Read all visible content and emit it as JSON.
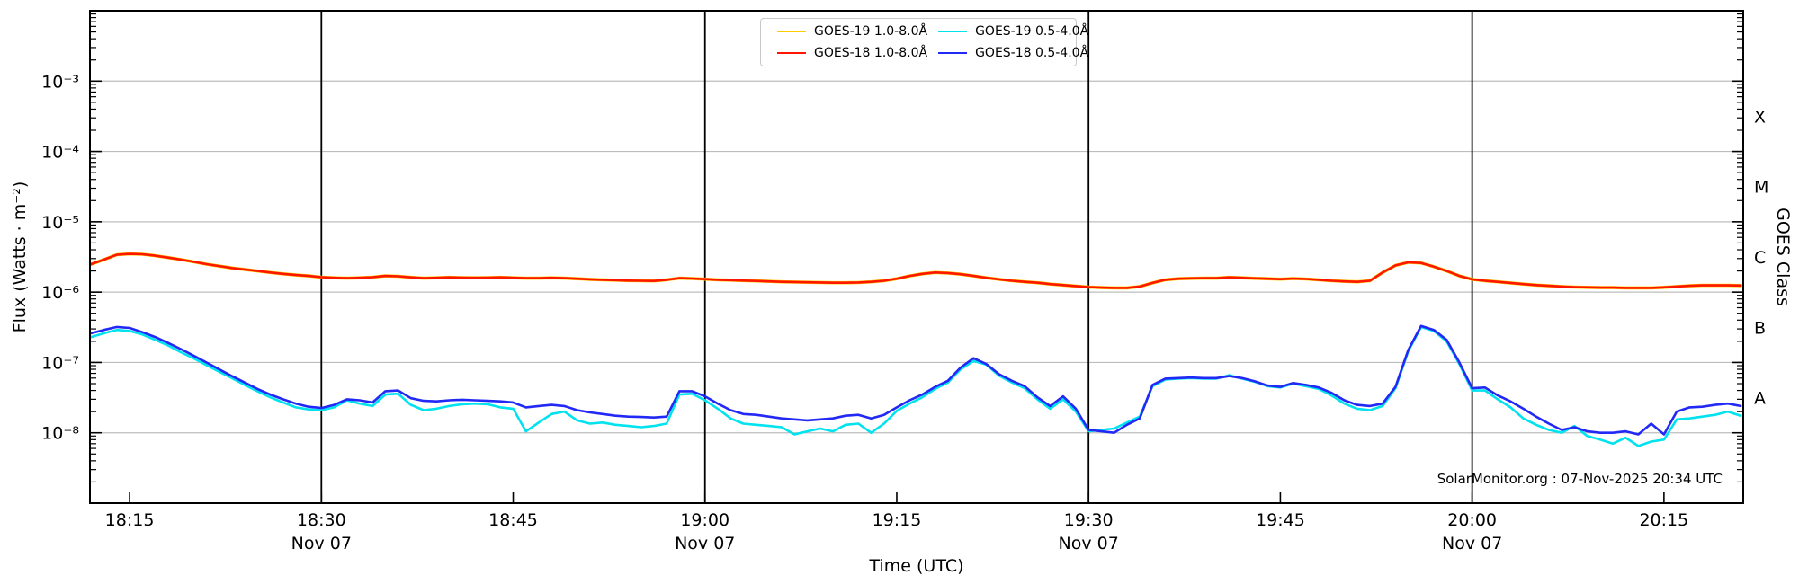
{
  "chart_data": {
    "type": "line",
    "title": "",
    "xlabel": "Time (UTC)",
    "ylabel": "Flux (Watts · m⁻²)",
    "y2label": "GOES Class",
    "attribution": "SolarMonitor.org : 07-Nov-2025 20:34 UTC",
    "x_axis_note": "minutes after 18:00 UTC on 07-Nov-2025",
    "x_domain": [
      11.9,
      141.2
    ],
    "ylim": [
      1e-09,
      0.01
    ],
    "grid": "horizontal decade gridlines",
    "grid_color": "#bdbdbd",
    "frame_color": "#000000",
    "legend_position": "top-center",
    "x_ticks": [
      {
        "t": 15,
        "label": "18:15"
      },
      {
        "t": 30,
        "label": "18:30",
        "date": "Nov 07"
      },
      {
        "t": 45,
        "label": "18:45"
      },
      {
        "t": 60,
        "label": "19:00",
        "date": "Nov 07"
      },
      {
        "t": 75,
        "label": "19:15"
      },
      {
        "t": 90,
        "label": "19:30",
        "date": "Nov 07"
      },
      {
        "t": 105,
        "label": "19:45"
      },
      {
        "t": 120,
        "label": "20:00",
        "date": "Nov 07"
      },
      {
        "t": 135,
        "label": "20:15"
      }
    ],
    "date_lines": [
      30,
      60,
      90,
      120
    ],
    "y_ticks": [
      {
        "v": 0.001,
        "label": "10⁻³"
      },
      {
        "v": 0.0001,
        "label": "10⁻⁴"
      },
      {
        "v": 1e-05,
        "label": "10⁻⁵"
      },
      {
        "v": 1e-06,
        "label": "10⁻⁶"
      },
      {
        "v": 1e-07,
        "label": "10⁻⁷"
      },
      {
        "v": 1e-08,
        "label": "10⁻⁸"
      }
    ],
    "class_labels": [
      {
        "v": 0.000316,
        "label": "X"
      },
      {
        "v": 3.16e-05,
        "label": "M"
      },
      {
        "v": 3.16e-06,
        "label": "C"
      },
      {
        "v": 3.16e-07,
        "label": "B"
      },
      {
        "v": 3.16e-08,
        "label": "A"
      }
    ],
    "t_minutes": {
      "start": 12,
      "step": 1,
      "count": 130
    },
    "series": [
      {
        "name": "GOES-19 1.0-8.0Å",
        "color": "#ffcc00",
        "width": 3.6,
        "values": [
          2.5e-06,
          2.9e-06,
          3.4e-06,
          3.5e-06,
          3.45e-06,
          3.3e-06,
          3.1e-06,
          2.9e-06,
          2.7e-06,
          2.5e-06,
          2.35e-06,
          2.2e-06,
          2.1e-06,
          2e-06,
          1.9e-06,
          1.82e-06,
          1.75e-06,
          1.7e-06,
          1.63e-06,
          1.6e-06,
          1.58e-06,
          1.6e-06,
          1.63e-06,
          1.7e-06,
          1.68e-06,
          1.62e-06,
          1.58e-06,
          1.6e-06,
          1.62e-06,
          1.61e-06,
          1.6e-06,
          1.61e-06,
          1.62e-06,
          1.6e-06,
          1.58e-06,
          1.58e-06,
          1.6e-06,
          1.58e-06,
          1.55e-06,
          1.52e-06,
          1.5e-06,
          1.48e-06,
          1.46e-06,
          1.45e-06,
          1.44e-06,
          1.5e-06,
          1.58e-06,
          1.56e-06,
          1.53e-06,
          1.5e-06,
          1.48e-06,
          1.46e-06,
          1.44e-06,
          1.42e-06,
          1.4e-06,
          1.39e-06,
          1.38e-06,
          1.37e-06,
          1.36e-06,
          1.36e-06,
          1.37e-06,
          1.4e-06,
          1.45e-06,
          1.55e-06,
          1.7e-06,
          1.82e-06,
          1.9e-06,
          1.87e-06,
          1.8e-06,
          1.7e-06,
          1.6e-06,
          1.52e-06,
          1.45e-06,
          1.4e-06,
          1.36e-06,
          1.3e-06,
          1.26e-06,
          1.22e-06,
          1.18e-06,
          1.16e-06,
          1.15e-06,
          1.15e-06,
          1.2e-06,
          1.35e-06,
          1.5e-06,
          1.55e-06,
          1.57e-06,
          1.58e-06,
          1.58e-06,
          1.62e-06,
          1.6e-06,
          1.57e-06,
          1.55e-06,
          1.53e-06,
          1.56e-06,
          1.54e-06,
          1.5e-06,
          1.45e-06,
          1.42e-06,
          1.4e-06,
          1.45e-06,
          1.9e-06,
          2.4e-06,
          2.65e-06,
          2.6e-06,
          2.3e-06,
          2e-06,
          1.7e-06,
          1.52e-06,
          1.45e-06,
          1.4e-06,
          1.35e-06,
          1.3e-06,
          1.26e-06,
          1.23e-06,
          1.2e-06,
          1.18e-06,
          1.17e-06,
          1.16e-06,
          1.16e-06,
          1.15e-06,
          1.15e-06,
          1.15e-06,
          1.17e-06,
          1.2e-06,
          1.23e-06,
          1.25e-06,
          1.25e-06,
          1.25e-06,
          1.24e-06
        ]
      },
      {
        "name": "GOES-18 1.0-8.0Å",
        "color": "#ff1600",
        "width": 2.6,
        "values": [
          2.5e-06,
          2.9e-06,
          3.4e-06,
          3.5e-06,
          3.45e-06,
          3.3e-06,
          3.1e-06,
          2.9e-06,
          2.7e-06,
          2.5e-06,
          2.35e-06,
          2.2e-06,
          2.1e-06,
          2e-06,
          1.9e-06,
          1.82e-06,
          1.75e-06,
          1.7e-06,
          1.63e-06,
          1.6e-06,
          1.58e-06,
          1.6e-06,
          1.63e-06,
          1.7e-06,
          1.68e-06,
          1.62e-06,
          1.58e-06,
          1.6e-06,
          1.62e-06,
          1.61e-06,
          1.6e-06,
          1.61e-06,
          1.62e-06,
          1.6e-06,
          1.58e-06,
          1.58e-06,
          1.6e-06,
          1.58e-06,
          1.55e-06,
          1.52e-06,
          1.5e-06,
          1.48e-06,
          1.46e-06,
          1.45e-06,
          1.44e-06,
          1.5e-06,
          1.58e-06,
          1.56e-06,
          1.53e-06,
          1.5e-06,
          1.48e-06,
          1.46e-06,
          1.44e-06,
          1.42e-06,
          1.4e-06,
          1.39e-06,
          1.38e-06,
          1.37e-06,
          1.36e-06,
          1.36e-06,
          1.37e-06,
          1.4e-06,
          1.45e-06,
          1.55e-06,
          1.7e-06,
          1.82e-06,
          1.9e-06,
          1.87e-06,
          1.8e-06,
          1.7e-06,
          1.6e-06,
          1.52e-06,
          1.45e-06,
          1.4e-06,
          1.36e-06,
          1.3e-06,
          1.26e-06,
          1.22e-06,
          1.18e-06,
          1.16e-06,
          1.15e-06,
          1.15e-06,
          1.2e-06,
          1.35e-06,
          1.5e-06,
          1.55e-06,
          1.57e-06,
          1.58e-06,
          1.58e-06,
          1.62e-06,
          1.6e-06,
          1.57e-06,
          1.55e-06,
          1.53e-06,
          1.56e-06,
          1.54e-06,
          1.5e-06,
          1.45e-06,
          1.42e-06,
          1.4e-06,
          1.45e-06,
          1.9e-06,
          2.4e-06,
          2.65e-06,
          2.6e-06,
          2.3e-06,
          2e-06,
          1.7e-06,
          1.52e-06,
          1.45e-06,
          1.4e-06,
          1.35e-06,
          1.3e-06,
          1.26e-06,
          1.23e-06,
          1.2e-06,
          1.18e-06,
          1.17e-06,
          1.16e-06,
          1.16e-06,
          1.15e-06,
          1.15e-06,
          1.15e-06,
          1.17e-06,
          1.2e-06,
          1.23e-06,
          1.25e-06,
          1.25e-06,
          1.25e-06,
          1.24e-06
        ]
      },
      {
        "name": "GOES-19 0.5-4.0Å",
        "color": "#00e2ee",
        "width": 2.6,
        "values": [
          2.3e-07,
          2.6e-07,
          2.9e-07,
          2.8e-07,
          2.5e-07,
          2.1e-07,
          1.75e-07,
          1.4e-07,
          1.15e-07,
          9.2e-08,
          7.4e-08,
          6e-08,
          4.8e-08,
          3.9e-08,
          3.2e-08,
          2.7e-08,
          2.3e-08,
          2.15e-08,
          2.1e-08,
          2.3e-08,
          2.9e-08,
          2.6e-08,
          2.4e-08,
          3.5e-08,
          3.6e-08,
          2.5e-08,
          2.1e-08,
          2.2e-08,
          2.4e-08,
          2.55e-08,
          2.6e-08,
          2.55e-08,
          2.3e-08,
          2.2e-08,
          1.05e-08,
          1.4e-08,
          1.85e-08,
          2e-08,
          1.5e-08,
          1.35e-08,
          1.4e-08,
          1.3e-08,
          1.25e-08,
          1.2e-08,
          1.25e-08,
          1.35e-08,
          3.5e-08,
          3.6e-08,
          2.9e-08,
          2.2e-08,
          1.6e-08,
          1.35e-08,
          1.3e-08,
          1.25e-08,
          1.2e-08,
          9.5e-09,
          1.05e-08,
          1.15e-08,
          1.05e-08,
          1.3e-08,
          1.35e-08,
          1e-08,
          1.35e-08,
          2.05e-08,
          2.6e-08,
          3.2e-08,
          4.2e-08,
          5.2e-08,
          8e-08,
          1.05e-07,
          9.3e-08,
          6.5e-08,
          5.2e-08,
          4.3e-08,
          3e-08,
          2.2e-08,
          3e-08,
          2e-08,
          1.05e-08,
          1.1e-08,
          1.15e-08,
          1.4e-08,
          1.7e-08,
          4.6e-08,
          5.7e-08,
          5.9e-08,
          6e-08,
          5.9e-08,
          5.9e-08,
          6.6e-08,
          5.9e-08,
          5.3e-08,
          4.6e-08,
          4.4e-08,
          5e-08,
          4.6e-08,
          4.2e-08,
          3.4e-08,
          2.6e-08,
          2.2e-08,
          2.1e-08,
          2.4e-08,
          4.3e-08,
          1.45e-07,
          3.2e-07,
          2.8e-07,
          2e-07,
          9.5e-08,
          4e-08,
          4e-08,
          3e-08,
          2.3e-08,
          1.6e-08,
          1.3e-08,
          1.1e-08,
          1e-08,
          1.25e-08,
          9e-09,
          8e-09,
          7e-09,
          8.5e-09,
          6.5e-09,
          7.5e-09,
          8e-09,
          1.55e-08,
          1.6e-08,
          1.7e-08,
          1.8e-08,
          2e-08,
          1.75e-08
        ]
      },
      {
        "name": "GOES-18 0.5-4.0Å",
        "color": "#2228f5",
        "width": 2.6,
        "values": [
          2.6e-07,
          2.9e-07,
          3.2e-07,
          3.1e-07,
          2.7e-07,
          2.3e-07,
          1.9e-07,
          1.55e-07,
          1.25e-07,
          1e-07,
          8e-08,
          6.4e-08,
          5.2e-08,
          4.2e-08,
          3.5e-08,
          3e-08,
          2.6e-08,
          2.35e-08,
          2.25e-08,
          2.5e-08,
          3e-08,
          2.9e-08,
          2.7e-08,
          3.9e-08,
          4e-08,
          3.1e-08,
          2.85e-08,
          2.8e-08,
          2.9e-08,
          2.95e-08,
          2.9e-08,
          2.85e-08,
          2.8e-08,
          2.7e-08,
          2.3e-08,
          2.4e-08,
          2.5e-08,
          2.4e-08,
          2.1e-08,
          1.95e-08,
          1.85e-08,
          1.75e-08,
          1.7e-08,
          1.68e-08,
          1.65e-08,
          1.7e-08,
          3.9e-08,
          3.9e-08,
          3.3e-08,
          2.6e-08,
          2.1e-08,
          1.85e-08,
          1.8e-08,
          1.7e-08,
          1.6e-08,
          1.55e-08,
          1.5e-08,
          1.55e-08,
          1.6e-08,
          1.75e-08,
          1.8e-08,
          1.6e-08,
          1.8e-08,
          2.3e-08,
          2.9e-08,
          3.5e-08,
          4.5e-08,
          5.5e-08,
          8.5e-08,
          1.15e-07,
          9.5e-08,
          6.8e-08,
          5.5e-08,
          4.6e-08,
          3.2e-08,
          2.4e-08,
          3.3e-08,
          2.2e-08,
          1.1e-08,
          1.05e-08,
          1e-08,
          1.3e-08,
          1.6e-08,
          4.8e-08,
          5.9e-08,
          6e-08,
          6.1e-08,
          6e-08,
          6e-08,
          6.4e-08,
          6e-08,
          5.4e-08,
          4.7e-08,
          4.5e-08,
          5.1e-08,
          4.8e-08,
          4.4e-08,
          3.7e-08,
          2.9e-08,
          2.5e-08,
          2.4e-08,
          2.6e-08,
          4.5e-08,
          1.5e-07,
          3.3e-07,
          2.9e-07,
          2.1e-07,
          1e-07,
          4.3e-08,
          4.4e-08,
          3.4e-08,
          2.8e-08,
          2.2e-08,
          1.7e-08,
          1.35e-08,
          1.1e-08,
          1.2e-08,
          1.05e-08,
          1e-08,
          1e-08,
          1.05e-08,
          9.5e-09,
          1.35e-08,
          9.5e-09,
          2e-08,
          2.3e-08,
          2.35e-08,
          2.5e-08,
          2.6e-08,
          2.4e-08
        ]
      }
    ]
  }
}
